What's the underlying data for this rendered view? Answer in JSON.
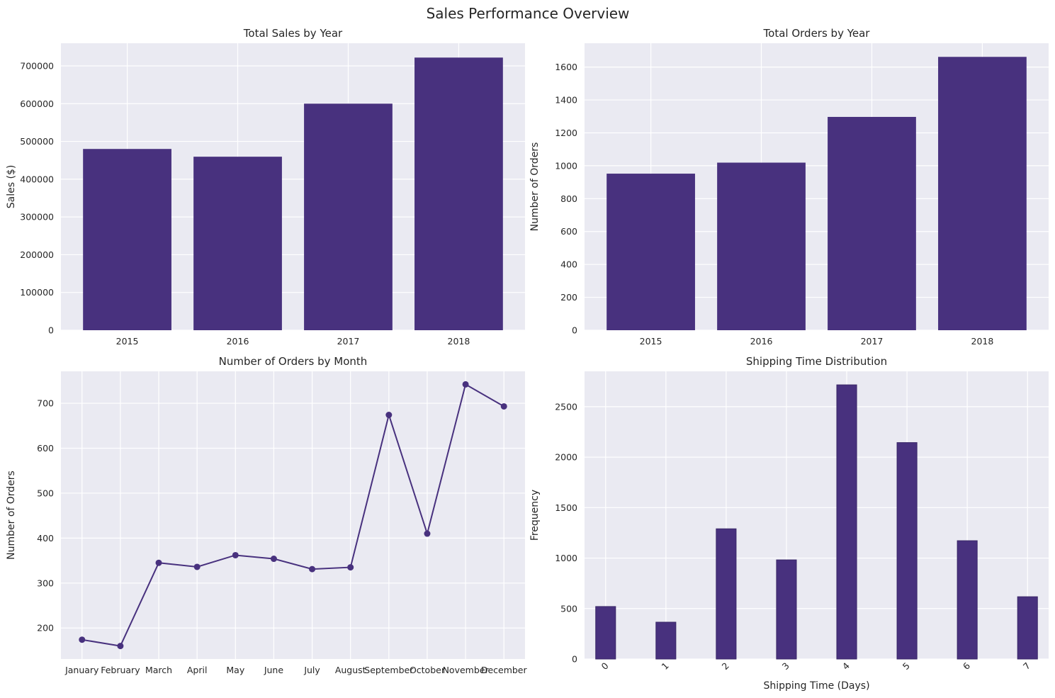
{
  "title": "Sales Performance Overview",
  "colors": {
    "bar": "#48317e",
    "line": "#48317e",
    "axes_bg": "#eaeaf2",
    "grid": "#ffffff"
  },
  "chart_data": [
    {
      "type": "bar",
      "title": "Total Sales by Year",
      "categories": [
        "2015",
        "2016",
        "2017",
        "2018"
      ],
      "values": [
        480000,
        459500,
        600000,
        722000
      ],
      "ylabel": "Sales ($)",
      "xlabel": "",
      "ylim": [
        0,
        760000
      ],
      "yticks": [
        0,
        100000,
        200000,
        300000,
        400000,
        500000,
        600000,
        700000
      ],
      "grid": true
    },
    {
      "type": "bar",
      "title": "Total Orders by Year",
      "categories": [
        "2015",
        "2016",
        "2017",
        "2018"
      ],
      "values": [
        952,
        1019,
        1297,
        1662
      ],
      "ylabel": "Number of Orders",
      "xlabel": "",
      "ylim": [
        0,
        1745
      ],
      "yticks": [
        0,
        200,
        400,
        600,
        800,
        1000,
        1200,
        1400,
        1600
      ],
      "grid": true
    },
    {
      "type": "line",
      "title": "Number of Orders by Month",
      "categories": [
        "January",
        "February",
        "March",
        "April",
        "May",
        "June",
        "July",
        "August",
        "September",
        "October",
        "November",
        "December"
      ],
      "values": [
        174,
        160,
        345,
        336,
        362,
        354,
        331,
        335,
        674,
        410,
        742,
        693
      ],
      "ylabel": "Number of Orders",
      "xlabel": "",
      "ylim": [
        131,
        771
      ],
      "yticks": [
        200,
        300,
        400,
        500,
        600,
        700
      ],
      "markers": true,
      "grid": true
    },
    {
      "type": "bar",
      "title": "Shipping Time Distribution",
      "categories": [
        "0",
        "1",
        "2",
        "3",
        "4",
        "5",
        "6",
        "7"
      ],
      "values": [
        520,
        365,
        1290,
        982,
        2716,
        2144,
        1172,
        617
      ],
      "ylabel": "Frequency",
      "xlabel": "Shipping Time (Days)",
      "ylim": [
        0,
        2850
      ],
      "yticks": [
        0,
        500,
        1000,
        1500,
        2000,
        2500
      ],
      "grid": true
    }
  ]
}
